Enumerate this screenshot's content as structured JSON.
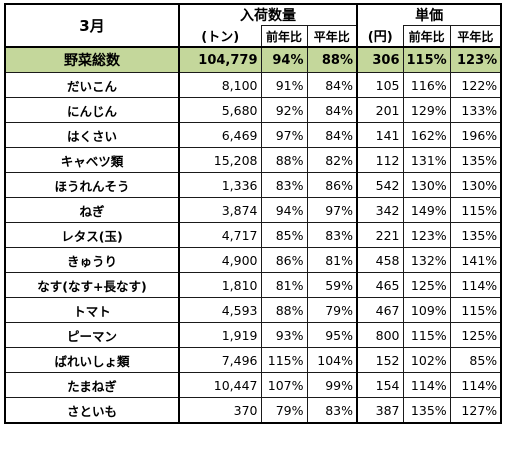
{
  "header": {
    "month": "3月",
    "volume_group": "入荷数量",
    "volume_unit": "(トン)",
    "price_group": "単価",
    "price_unit": "(円)",
    "prev_year": "前年比",
    "avg_year": "平年比"
  },
  "total": {
    "name": "野菜総数",
    "volume": "104,779",
    "vol_prev": "94%",
    "vol_avg": "88%",
    "price": "306",
    "price_prev": "115%",
    "price_avg": "123%"
  },
  "rows": [
    {
      "name": "だいこん",
      "volume": "8,100",
      "vol_prev": "91%",
      "vol_avg": "84%",
      "price": "105",
      "price_prev": "116%",
      "price_avg": "122%"
    },
    {
      "name": "にんじん",
      "volume": "5,680",
      "vol_prev": "92%",
      "vol_avg": "84%",
      "price": "201",
      "price_prev": "129%",
      "price_avg": "133%"
    },
    {
      "name": "はくさい",
      "volume": "6,469",
      "vol_prev": "97%",
      "vol_avg": "84%",
      "price": "141",
      "price_prev": "162%",
      "price_avg": "196%"
    },
    {
      "name": "キャベツ類",
      "volume": "15,208",
      "vol_prev": "88%",
      "vol_avg": "82%",
      "price": "112",
      "price_prev": "131%",
      "price_avg": "135%"
    },
    {
      "name": "ほうれんそう",
      "volume": "1,336",
      "vol_prev": "83%",
      "vol_avg": "86%",
      "price": "542",
      "price_prev": "130%",
      "price_avg": "130%"
    },
    {
      "name": "ねぎ",
      "volume": "3,874",
      "vol_prev": "94%",
      "vol_avg": "97%",
      "price": "342",
      "price_prev": "149%",
      "price_avg": "115%"
    },
    {
      "name": "レタス(玉)",
      "volume": "4,717",
      "vol_prev": "85%",
      "vol_avg": "83%",
      "price": "221",
      "price_prev": "123%",
      "price_avg": "135%"
    },
    {
      "name": "きゅうり",
      "volume": "4,900",
      "vol_prev": "86%",
      "vol_avg": "81%",
      "price": "458",
      "price_prev": "132%",
      "price_avg": "141%"
    },
    {
      "name": "なす(なす+長なす)",
      "volume": "1,810",
      "vol_prev": "81%",
      "vol_avg": "59%",
      "price": "465",
      "price_prev": "125%",
      "price_avg": "114%"
    },
    {
      "name": "トマト",
      "volume": "4,593",
      "vol_prev": "88%",
      "vol_avg": "79%",
      "price": "467",
      "price_prev": "109%",
      "price_avg": "115%"
    },
    {
      "name": "ピーマン",
      "volume": "1,919",
      "vol_prev": "93%",
      "vol_avg": "95%",
      "price": "800",
      "price_prev": "115%",
      "price_avg": "125%"
    },
    {
      "name": "ばれいしょ類",
      "volume": "7,496",
      "vol_prev": "115%",
      "vol_avg": "104%",
      "price": "152",
      "price_prev": "102%",
      "price_avg": "85%"
    },
    {
      "name": "たまねぎ",
      "volume": "10,447",
      "vol_prev": "107%",
      "vol_avg": "99%",
      "price": "154",
      "price_prev": "114%",
      "price_avg": "114%"
    },
    {
      "name": "さといも",
      "volume": "370",
      "vol_prev": "79%",
      "vol_avg": "83%",
      "price": "387",
      "price_prev": "135%",
      "price_avg": "127%"
    }
  ]
}
